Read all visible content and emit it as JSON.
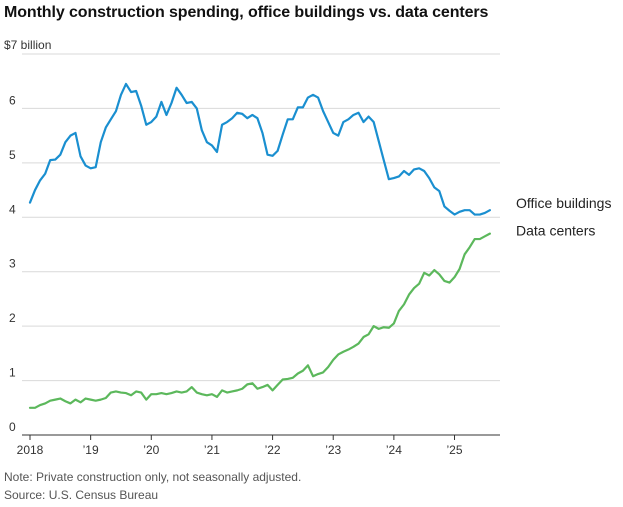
{
  "title": "Monthly construction spending, office buildings vs. data centers",
  "unit_label": "$7 billion",
  "note": "Note: Private construction only, not seasonally adjusted.",
  "source": "Source: U.S. Census Bureau",
  "colors": {
    "office": "#1a8fd0",
    "data_centers": "#5cb85c",
    "grid": "#d9d9d9",
    "axis": "#333333"
  },
  "chart_data": {
    "type": "line",
    "title": "Monthly construction spending, office buildings vs. data centers",
    "ylabel": "",
    "xlabel": "",
    "ylim": [
      0,
      7
    ],
    "xlim": [
      "2018-01",
      "2025-08"
    ],
    "grid": true,
    "y_ticks": [
      {
        "value": 0,
        "label": "0"
      },
      {
        "value": 1,
        "label": "1"
      },
      {
        "value": 2,
        "label": "2"
      },
      {
        "value": 3,
        "label": "3"
      },
      {
        "value": 4,
        "label": "4"
      },
      {
        "value": 5,
        "label": "5"
      },
      {
        "value": 6,
        "label": "6"
      },
      {
        "value": 7,
        "label": "$7 billion"
      }
    ],
    "x_ticks": [
      {
        "x": 2018,
        "label": "2018"
      },
      {
        "x": 2019,
        "label": "’19"
      },
      {
        "x": 2020,
        "label": "’20"
      },
      {
        "x": 2021,
        "label": "’21"
      },
      {
        "x": 2022,
        "label": "’22"
      },
      {
        "x": 2023,
        "label": "’23"
      },
      {
        "x": 2024,
        "label": "’24"
      },
      {
        "x": 2025,
        "label": "’25"
      }
    ],
    "series": [
      {
        "name": "Office buildings",
        "color": "#1a8fd0",
        "x": [
          2018.0,
          2018.083,
          2018.167,
          2018.25,
          2018.333,
          2018.417,
          2018.5,
          2018.583,
          2018.667,
          2018.75,
          2018.833,
          2018.917,
          2019.0,
          2019.083,
          2019.167,
          2019.25,
          2019.333,
          2019.417,
          2019.5,
          2019.583,
          2019.667,
          2019.75,
          2019.833,
          2019.917,
          2020.0,
          2020.083,
          2020.167,
          2020.25,
          2020.333,
          2020.417,
          2020.5,
          2020.583,
          2020.667,
          2020.75,
          2020.833,
          2020.917,
          2021.0,
          2021.083,
          2021.167,
          2021.25,
          2021.333,
          2021.417,
          2021.5,
          2021.583,
          2021.667,
          2021.75,
          2021.833,
          2021.917,
          2022.0,
          2022.083,
          2022.167,
          2022.25,
          2022.333,
          2022.417,
          2022.5,
          2022.583,
          2022.667,
          2022.75,
          2022.833,
          2022.917,
          2023.0,
          2023.083,
          2023.167,
          2023.25,
          2023.333,
          2023.417,
          2023.5,
          2023.583,
          2023.667,
          2023.75,
          2023.833,
          2023.917,
          2024.0,
          2024.083,
          2024.167,
          2024.25,
          2024.333,
          2024.417,
          2024.5,
          2024.583,
          2024.667,
          2024.75,
          2024.833,
          2024.917,
          2025.0,
          2025.083,
          2025.167,
          2025.25,
          2025.333,
          2025.417,
          2025.5,
          2025.583
        ],
        "values": [
          4.27,
          4.5,
          4.68,
          4.8,
          5.05,
          5.06,
          5.15,
          5.38,
          5.5,
          5.55,
          5.12,
          4.95,
          4.9,
          4.92,
          5.38,
          5.65,
          5.8,
          5.95,
          6.25,
          6.45,
          6.3,
          6.32,
          6.05,
          5.7,
          5.75,
          5.85,
          6.12,
          5.88,
          6.1,
          6.38,
          6.25,
          6.1,
          6.12,
          6.0,
          5.6,
          5.38,
          5.32,
          5.2,
          5.7,
          5.75,
          5.82,
          5.92,
          5.9,
          5.82,
          5.88,
          5.82,
          5.55,
          5.15,
          5.13,
          5.22,
          5.52,
          5.8,
          5.8,
          6.02,
          6.02,
          6.2,
          6.25,
          6.2,
          5.95,
          5.75,
          5.55,
          5.5,
          5.75,
          5.8,
          5.88,
          5.92,
          5.75,
          5.85,
          5.75,
          5.4,
          5.05,
          4.7,
          4.72,
          4.75,
          4.85,
          4.78,
          4.88,
          4.9,
          4.85,
          4.72,
          4.55,
          4.48,
          4.2,
          4.12,
          4.05,
          4.1,
          4.13,
          4.13,
          4.05,
          4.05,
          4.08,
          4.13
        ]
      },
      {
        "name": "Data centers",
        "color": "#5cb85c",
        "x": [
          2018.0,
          2018.083,
          2018.167,
          2018.25,
          2018.333,
          2018.417,
          2018.5,
          2018.583,
          2018.667,
          2018.75,
          2018.833,
          2018.917,
          2019.0,
          2019.083,
          2019.167,
          2019.25,
          2019.333,
          2019.417,
          2019.5,
          2019.583,
          2019.667,
          2019.75,
          2019.833,
          2019.917,
          2020.0,
          2020.083,
          2020.167,
          2020.25,
          2020.333,
          2020.417,
          2020.5,
          2020.583,
          2020.667,
          2020.75,
          2020.833,
          2020.917,
          2021.0,
          2021.083,
          2021.167,
          2021.25,
          2021.333,
          2021.417,
          2021.5,
          2021.583,
          2021.667,
          2021.75,
          2021.833,
          2021.917,
          2022.0,
          2022.083,
          2022.167,
          2022.25,
          2022.333,
          2022.417,
          2022.5,
          2022.583,
          2022.667,
          2022.75,
          2022.833,
          2022.917,
          2023.0,
          2023.083,
          2023.167,
          2023.25,
          2023.333,
          2023.417,
          2023.5,
          2023.583,
          2023.667,
          2023.75,
          2023.833,
          2023.917,
          2024.0,
          2024.083,
          2024.167,
          2024.25,
          2024.333,
          2024.417,
          2024.5,
          2024.583,
          2024.667,
          2024.75,
          2024.833,
          2024.917,
          2025.0,
          2025.083,
          2025.167,
          2025.25,
          2025.333,
          2025.417,
          2025.5,
          2025.583
        ],
        "values": [
          0.5,
          0.5,
          0.55,
          0.58,
          0.63,
          0.65,
          0.67,
          0.62,
          0.58,
          0.65,
          0.6,
          0.67,
          0.65,
          0.63,
          0.65,
          0.68,
          0.78,
          0.8,
          0.78,
          0.77,
          0.73,
          0.8,
          0.78,
          0.65,
          0.75,
          0.75,
          0.77,
          0.75,
          0.77,
          0.8,
          0.78,
          0.8,
          0.88,
          0.78,
          0.75,
          0.73,
          0.75,
          0.7,
          0.82,
          0.78,
          0.8,
          0.82,
          0.85,
          0.93,
          0.95,
          0.85,
          0.88,
          0.92,
          0.82,
          0.92,
          1.02,
          1.03,
          1.05,
          1.13,
          1.18,
          1.28,
          1.08,
          1.12,
          1.15,
          1.25,
          1.38,
          1.48,
          1.53,
          1.57,
          1.62,
          1.68,
          1.8,
          1.85,
          2.0,
          1.95,
          1.98,
          1.97,
          2.05,
          2.28,
          2.4,
          2.58,
          2.7,
          2.78,
          2.98,
          2.93,
          3.03,
          2.95,
          2.83,
          2.8,
          2.9,
          3.05,
          3.32,
          3.45,
          3.6,
          3.6,
          3.65,
          3.7
        ]
      }
    ]
  }
}
